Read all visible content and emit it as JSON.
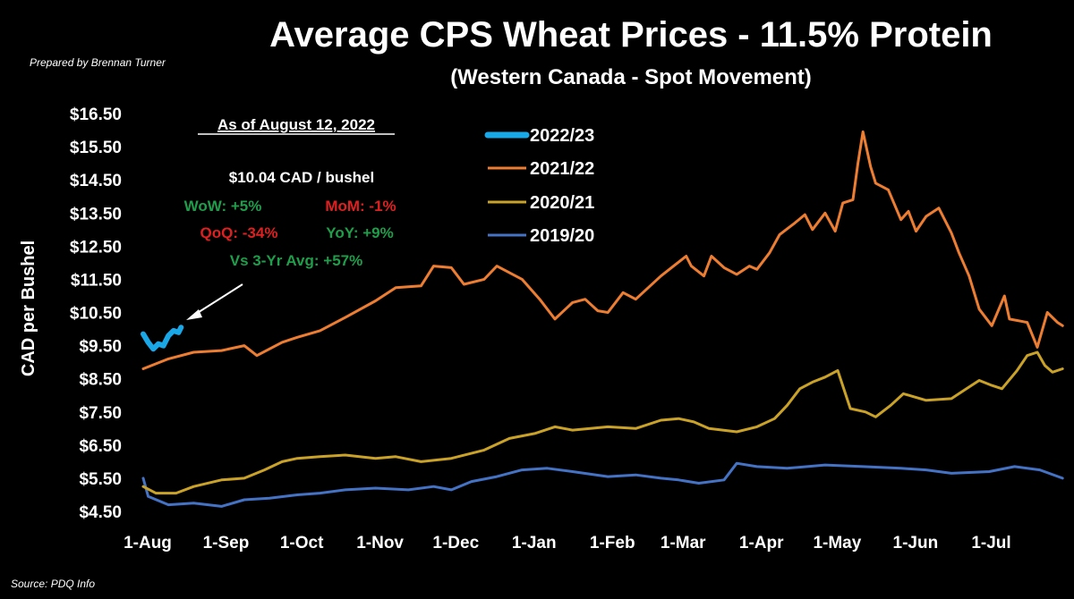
{
  "chart_data": {
    "type": "line",
    "title": "Average CPS Wheat Prices - 11.5% Protein",
    "subtitle": "(Western Canada - Spot Movement)",
    "credit": "Prepared by Brennan Turner",
    "source": "Source: PDQ Info",
    "ylabel": "CAD per Bushel",
    "ylim": [
      4.5,
      16.5
    ],
    "y_ticks": [
      "$16.50",
      "$15.50",
      "$14.50",
      "$13.50",
      "$12.50",
      "$11.50",
      "$10.50",
      "$9.50",
      "$8.50",
      "$7.50",
      "$6.50",
      "$5.50",
      "$4.50"
    ],
    "x_ticks": [
      "1-Aug",
      "1-Sep",
      "1-Oct",
      "1-Nov",
      "1-Dec",
      "1-Jan",
      "1-Feb",
      "1-Mar",
      "1-Apr",
      "1-May",
      "1-Jun",
      "1-Jul"
    ],
    "grid": false,
    "legend_position": "top-center",
    "annotation": {
      "date_line": "As of August 12, 2022",
      "price_line": "$10.04 CAD / bushel",
      "wow": "WoW: +5%",
      "mom": "MoM: -1%",
      "qoq": "QoQ: -34%",
      "yoy": "YoY: +9%",
      "vs3yr": "Vs 3-Yr Avg: +57%"
    },
    "series": [
      {
        "name": "2022/23",
        "color": "#1aa7e8",
        "points": [
          [
            0,
            9.85
          ],
          [
            2,
            9.6
          ],
          [
            4,
            9.4
          ],
          [
            6,
            9.55
          ],
          [
            8,
            9.5
          ],
          [
            10,
            9.8
          ],
          [
            12,
            9.95
          ],
          [
            14,
            9.9
          ],
          [
            15,
            10.05
          ]
        ]
      },
      {
        "name": "2021/22",
        "color": "#ed7d31",
        "points": [
          [
            0,
            8.8
          ],
          [
            10,
            9.1
          ],
          [
            20,
            9.3
          ],
          [
            31,
            9.35
          ],
          [
            40,
            9.5
          ],
          [
            45,
            9.2
          ],
          [
            55,
            9.6
          ],
          [
            61,
            9.75
          ],
          [
            70,
            9.95
          ],
          [
            80,
            10.35
          ],
          [
            92,
            10.85
          ],
          [
            100,
            11.25
          ],
          [
            110,
            11.3
          ],
          [
            115,
            11.9
          ],
          [
            122,
            11.85
          ],
          [
            127,
            11.35
          ],
          [
            135,
            11.5
          ],
          [
            140,
            11.9
          ],
          [
            150,
            11.5
          ],
          [
            157,
            10.9
          ],
          [
            163,
            10.3
          ],
          [
            170,
            10.8
          ],
          [
            175,
            10.9
          ],
          [
            180,
            10.55
          ],
          [
            184,
            10.5
          ],
          [
            190,
            11.1
          ],
          [
            195,
            10.9
          ],
          [
            205,
            11.6
          ],
          [
            210,
            11.9
          ],
          [
            215,
            12.2
          ],
          [
            217,
            11.9
          ],
          [
            222,
            11.6
          ],
          [
            225,
            12.2
          ],
          [
            230,
            11.85
          ],
          [
            235,
            11.65
          ],
          [
            240,
            11.9
          ],
          [
            243,
            11.8
          ],
          [
            248,
            12.3
          ],
          [
            252,
            12.85
          ],
          [
            258,
            13.2
          ],
          [
            262,
            13.45
          ],
          [
            265,
            13.0
          ],
          [
            270,
            13.5
          ],
          [
            274,
            12.95
          ],
          [
            277,
            13.8
          ],
          [
            281,
            13.9
          ],
          [
            283,
            15.0
          ],
          [
            285,
            15.95
          ],
          [
            288,
            14.9
          ],
          [
            290,
            14.4
          ],
          [
            295,
            14.2
          ],
          [
            300,
            13.3
          ],
          [
            303,
            13.55
          ],
          [
            306,
            12.95
          ],
          [
            310,
            13.4
          ],
          [
            315,
            13.65
          ],
          [
            320,
            12.9
          ],
          [
            323,
            12.3
          ],
          [
            327,
            11.6
          ],
          [
            331,
            10.6
          ],
          [
            336,
            10.1
          ],
          [
            341,
            11.0
          ],
          [
            343,
            10.3
          ],
          [
            350,
            10.2
          ],
          [
            354,
            9.45
          ],
          [
            358,
            10.5
          ],
          [
            362,
            10.2
          ],
          [
            364,
            10.1
          ]
        ]
      },
      {
        "name": "2020/21",
        "color": "#c9a227",
        "points": [
          [
            0,
            5.25
          ],
          [
            5,
            5.05
          ],
          [
            13,
            5.05
          ],
          [
            20,
            5.25
          ],
          [
            31,
            5.45
          ],
          [
            40,
            5.5
          ],
          [
            48,
            5.75
          ],
          [
            55,
            6.0
          ],
          [
            61,
            6.1
          ],
          [
            70,
            6.15
          ],
          [
            80,
            6.2
          ],
          [
            92,
            6.1
          ],
          [
            100,
            6.15
          ],
          [
            110,
            6.0
          ],
          [
            122,
            6.1
          ],
          [
            135,
            6.35
          ],
          [
            145,
            6.7
          ],
          [
            155,
            6.85
          ],
          [
            163,
            7.05
          ],
          [
            170,
            6.95
          ],
          [
            184,
            7.05
          ],
          [
            195,
            7.0
          ],
          [
            205,
            7.25
          ],
          [
            212,
            7.3
          ],
          [
            218,
            7.2
          ],
          [
            224,
            7.0
          ],
          [
            235,
            6.9
          ],
          [
            243,
            7.05
          ],
          [
            250,
            7.3
          ],
          [
            255,
            7.7
          ],
          [
            260,
            8.2
          ],
          [
            265,
            8.4
          ],
          [
            270,
            8.55
          ],
          [
            275,
            8.75
          ],
          [
            280,
            7.6
          ],
          [
            286,
            7.5
          ],
          [
            290,
            7.35
          ],
          [
            296,
            7.7
          ],
          [
            301,
            8.05
          ],
          [
            310,
            7.85
          ],
          [
            320,
            7.9
          ],
          [
            326,
            8.2
          ],
          [
            331,
            8.45
          ],
          [
            336,
            8.3
          ],
          [
            340,
            8.2
          ],
          [
            346,
            8.75
          ],
          [
            350,
            9.2
          ],
          [
            354,
            9.3
          ],
          [
            357,
            8.9
          ],
          [
            360,
            8.7
          ],
          [
            364,
            8.8
          ]
        ]
      },
      {
        "name": "2019/20",
        "color": "#4472c4",
        "points": [
          [
            0,
            5.5
          ],
          [
            2,
            4.95
          ],
          [
            10,
            4.7
          ],
          [
            20,
            4.75
          ],
          [
            31,
            4.65
          ],
          [
            40,
            4.85
          ],
          [
            50,
            4.9
          ],
          [
            61,
            5.0
          ],
          [
            70,
            5.05
          ],
          [
            80,
            5.15
          ],
          [
            92,
            5.2
          ],
          [
            105,
            5.15
          ],
          [
            115,
            5.25
          ],
          [
            122,
            5.15
          ],
          [
            130,
            5.4
          ],
          [
            140,
            5.55
          ],
          [
            150,
            5.75
          ],
          [
            160,
            5.8
          ],
          [
            170,
            5.7
          ],
          [
            184,
            5.55
          ],
          [
            195,
            5.6
          ],
          [
            205,
            5.5
          ],
          [
            212,
            5.45
          ],
          [
            220,
            5.35
          ],
          [
            230,
            5.45
          ],
          [
            235,
            5.95
          ],
          [
            243,
            5.85
          ],
          [
            255,
            5.8
          ],
          [
            270,
            5.9
          ],
          [
            285,
            5.85
          ],
          [
            300,
            5.8
          ],
          [
            310,
            5.75
          ],
          [
            320,
            5.65
          ],
          [
            335,
            5.7
          ],
          [
            345,
            5.85
          ],
          [
            355,
            5.75
          ],
          [
            364,
            5.5
          ]
        ]
      }
    ]
  }
}
